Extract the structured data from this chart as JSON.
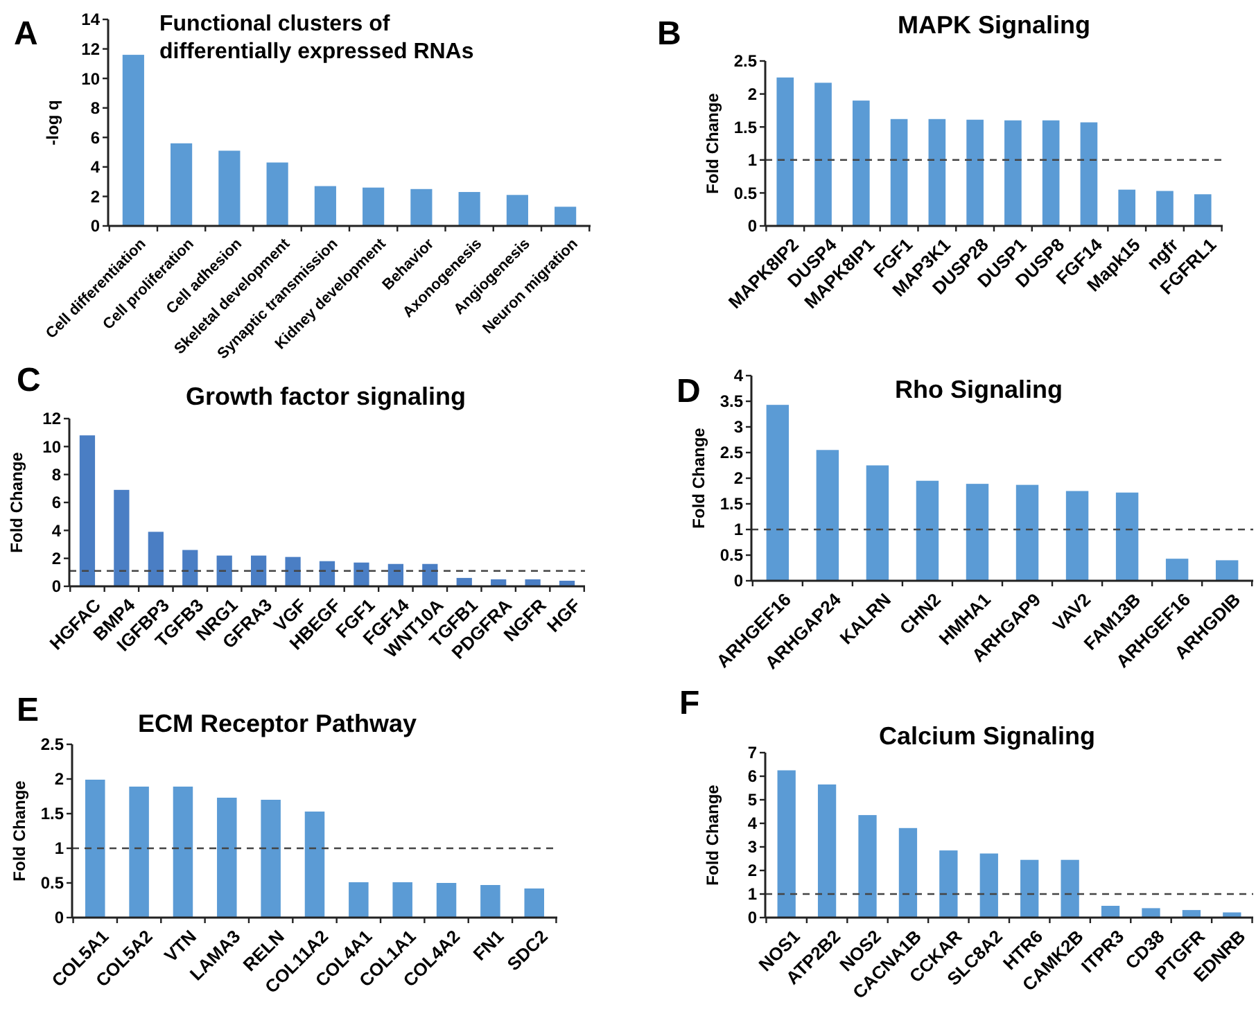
{
  "chart_data": [
    {
      "type": "bar",
      "title": "Functional clusters of differentially expressed RNAs",
      "ylabel": "-log q",
      "annotations": [
        "A"
      ],
      "categories": [
        "Cell differentiation",
        "Cell proliferation",
        "Cell adhesion",
        "Skeletal development",
        "Synaptic transmission",
        "Kidney development",
        "Behavior",
        "Axonogenesis",
        "Angiogenesis",
        "Neuron migration"
      ],
      "values": [
        11.6,
        5.6,
        5.1,
        4.3,
        2.7,
        2.6,
        2.5,
        2.3,
        2.1,
        1.3
      ],
      "color": "#5b9bd5",
      "ylim": [
        0,
        14
      ],
      "yticks": [
        0,
        2,
        4,
        6,
        8,
        10,
        12,
        14
      ]
    },
    {
      "type": "bar",
      "title": "MAPK Signaling",
      "ylabel": "Fold Change",
      "annotations": [
        "B"
      ],
      "categories": [
        "MAPK8IP2",
        "DUSP4",
        "MAPK8IP1",
        "FGF1",
        "MAP3K1",
        "DUSP28",
        "DUSP1",
        "DUSP8",
        "FGF14",
        "Mapk15",
        "ngfr",
        "FGFRL1"
      ],
      "values": [
        2.25,
        2.17,
        1.9,
        1.62,
        1.62,
        1.61,
        1.6,
        1.6,
        1.57,
        0.55,
        0.53,
        0.48
      ],
      "color": "#5b9bd5",
      "ylim": [
        0,
        2.5
      ],
      "yticks": [
        0,
        0.5,
        1,
        1.5,
        2,
        2.5
      ],
      "ref_lines": [
        {
          "axis": "y",
          "value": 1,
          "line_style": "dashed",
          "color": "#444444"
        }
      ]
    },
    {
      "type": "bar",
      "title": "Growth factor signaling",
      "ylabel": "Fold Change",
      "annotations": [
        "C"
      ],
      "categories": [
        "HGFAC",
        "BMP4",
        "IGFBP3",
        "TGFB3",
        "NRG1",
        "GFRA3",
        "VGF",
        "HBEGF",
        "FGF1",
        "FGF14",
        "WNT10A",
        "TGFB1",
        "PDGFRA",
        "NGFR",
        "HGF"
      ],
      "values": [
        10.8,
        6.9,
        3.9,
        2.6,
        2.2,
        2.2,
        2.1,
        1.8,
        1.7,
        1.6,
        1.6,
        0.6,
        0.5,
        0.5,
        0.4
      ],
      "color": "#4a7ec4",
      "ylim": [
        0,
        12
      ],
      "yticks": [
        0,
        2,
        4,
        6,
        8,
        10,
        12
      ],
      "ref_lines": [
        {
          "axis": "y",
          "value": 1.1,
          "line_style": "dashed",
          "color": "#444444"
        }
      ]
    },
    {
      "type": "bar",
      "title": "Rho Signaling",
      "ylabel": "Fold Change",
      "annotations": [
        "D"
      ],
      "categories": [
        "ARHGEF16",
        "ARHGAP24",
        "KALRN",
        "CHN2",
        "HMHA1",
        "ARHGAP9",
        "VAV2",
        "FAM13B",
        "ARHGEF16",
        "ARHGDIB"
      ],
      "values": [
        3.43,
        2.55,
        2.25,
        1.95,
        1.89,
        1.87,
        1.75,
        1.72,
        0.43,
        0.4
      ],
      "color": "#5b9bd5",
      "ylim": [
        0,
        4
      ],
      "yticks": [
        0,
        0.5,
        1,
        1.5,
        2,
        2.5,
        3,
        3.5,
        4
      ],
      "ref_lines": [
        {
          "axis": "y",
          "value": 1,
          "line_style": "dashed",
          "color": "#444444"
        }
      ]
    },
    {
      "type": "bar",
      "title": "ECM Receptor Pathway",
      "ylabel": "Fold Change",
      "annotations": [
        "E"
      ],
      "categories": [
        "COL5A1",
        "COL5A2",
        "VTN",
        "LAMA3",
        "RELN",
        "COL11A2",
        "COL4A1",
        "COL1A1",
        "COL4A2",
        "FN1",
        "SDC2"
      ],
      "values": [
        1.99,
        1.89,
        1.89,
        1.73,
        1.7,
        1.53,
        0.51,
        0.51,
        0.5,
        0.47,
        0.42
      ],
      "color": "#5b9bd5",
      "ylim": [
        0,
        2.5
      ],
      "yticks": [
        0,
        0.5,
        1,
        1.5,
        2,
        2.5
      ],
      "ref_lines": [
        {
          "axis": "y",
          "value": 1,
          "line_style": "dashed",
          "color": "#444444"
        }
      ]
    },
    {
      "type": "bar",
      "title": "Calcium Signaling",
      "ylabel": "Fold Change",
      "annotations": [
        "F"
      ],
      "categories": [
        "NOS1",
        "ATP2B2",
        "NOS2",
        "CACNA1B",
        "CCKAR",
        "SLC8A2",
        "HTR6",
        "CAMK2B",
        "ITPR3",
        "CD38",
        "PTGFR",
        "EDNRB"
      ],
      "values": [
        6.25,
        5.65,
        4.35,
        3.8,
        2.85,
        2.72,
        2.45,
        2.45,
        0.5,
        0.4,
        0.32,
        0.22
      ],
      "color": "#5b9bd5",
      "ylim": [
        0,
        7
      ],
      "yticks": [
        0,
        1,
        2,
        3,
        4,
        5,
        6,
        7
      ],
      "ref_lines": [
        {
          "axis": "y",
          "value": 1,
          "line_style": "dashed",
          "color": "#444444"
        }
      ]
    }
  ]
}
